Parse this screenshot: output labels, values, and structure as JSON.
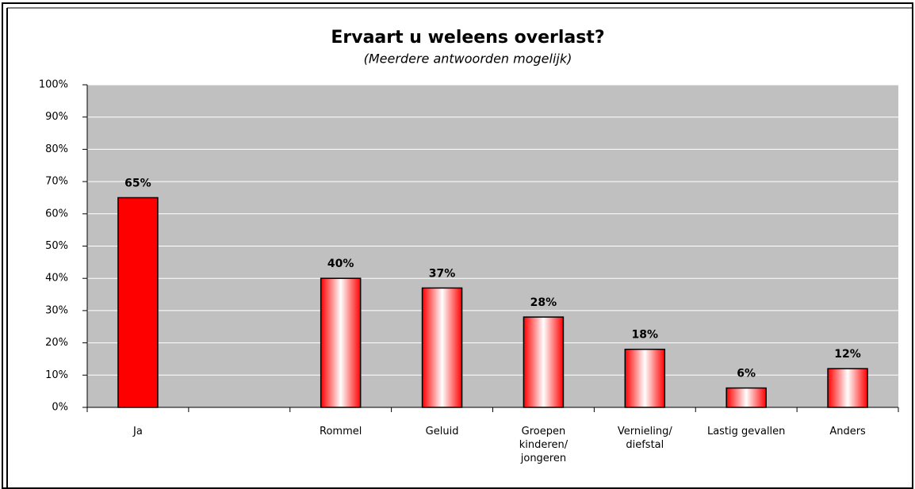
{
  "chart_data": {
    "type": "bar",
    "title": "Ervaart u weleens overlast?",
    "subtitle": "(Meerdere antwoorden mogelijk)",
    "categories": [
      "Ja",
      null,
      "Rommel",
      "Geluid",
      "Groepen\nkinderen/\njongeren",
      "Vernieling/\ndiefstal",
      "Lastig gevallen",
      "Anders"
    ],
    "values": [
      65,
      null,
      40,
      37,
      28,
      18,
      6,
      12
    ],
    "value_labels": [
      "65%",
      null,
      "40%",
      "37%",
      "28%",
      "18%",
      "6%",
      "12%"
    ],
    "color": "#ff0000",
    "ylim": [
      0,
      100
    ],
    "yticks": [
      {
        "value": 0,
        "label": "0%"
      },
      {
        "value": 10,
        "label": "10%"
      },
      {
        "value": 20,
        "label": "20%"
      },
      {
        "value": 30,
        "label": "30%"
      },
      {
        "value": 40,
        "label": "40%"
      },
      {
        "value": 50,
        "label": "50%"
      },
      {
        "value": 60,
        "label": "60%"
      },
      {
        "value": 70,
        "label": "70%"
      },
      {
        "value": 80,
        "label": "80%"
      },
      {
        "value": 90,
        "label": "90%"
      },
      {
        "value": 100,
        "label": "100%"
      }
    ],
    "grid": true
  }
}
